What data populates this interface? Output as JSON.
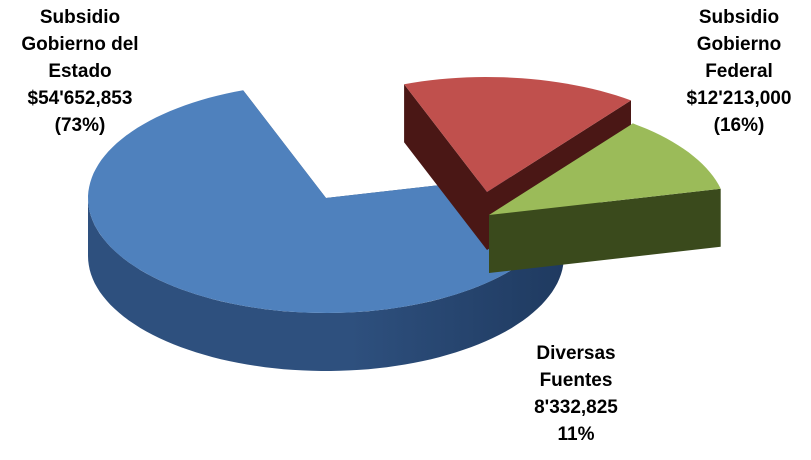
{
  "chart_data": {
    "type": "pie",
    "title": "",
    "exploded": true,
    "style": "3d",
    "slices": [
      {
        "key": "estado",
        "name_lines": [
          "Subsidio",
          "Gobierno del",
          "Estado"
        ],
        "value_text": "$54'652,853",
        "pct_text": "(73%)",
        "value": 54652853,
        "percent": 73,
        "color": "#4F81BD",
        "side_color": "#2E507E",
        "dark_color": "#1F3A60"
      },
      {
        "key": "federal",
        "name_lines": [
          "Subsidio",
          "Gobierno",
          "Federal"
        ],
        "value_text": "$12'213,000",
        "pct_text": "(16%)",
        "value": 12213000,
        "percent": 16,
        "color": "#C0504D",
        "side_color": "#6B2623",
        "dark_color": "#4A1715"
      },
      {
        "key": "diversas",
        "name_lines": [
          "Diversas",
          "Fuentes"
        ],
        "value_text": "8'332,825",
        "pct_text": "11%",
        "value": 8332825,
        "percent": 11,
        "color": "#9BBB59",
        "side_color": "#566B2C",
        "dark_color": "#3A4A1C"
      }
    ]
  }
}
